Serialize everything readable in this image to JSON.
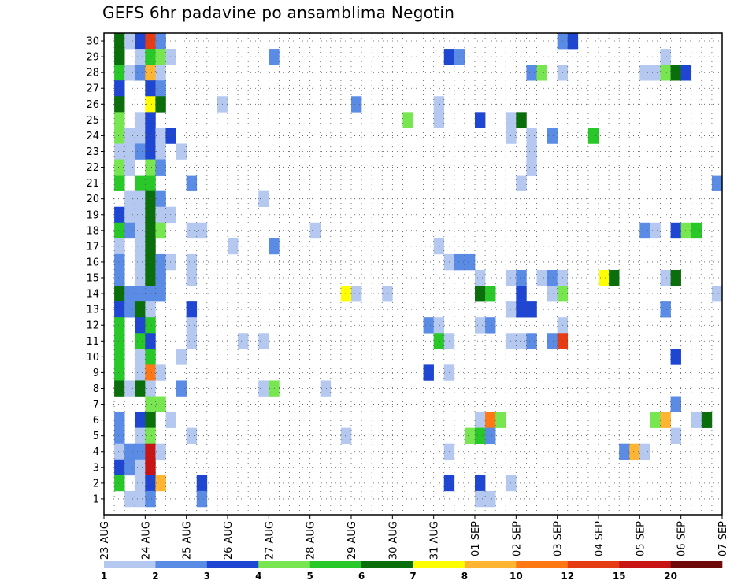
{
  "chart_data": {
    "type": "heatmap",
    "title": "GEFS 6hr padavine po ansamblima Negotin",
    "x_tick_labels": [
      "23 AUG",
      "24 AUG",
      "25 AUG",
      "26 AUG",
      "27 AUG",
      "28 AUG",
      "29 AUG",
      "30 AUG",
      "31 AUG",
      "01 SEP",
      "02 SEP",
      "03 SEP",
      "04 SEP",
      "05 SEP",
      "06 SEP",
      "07 SEP"
    ],
    "y_tick_labels": [
      "1",
      "2",
      "3",
      "4",
      "5",
      "6",
      "7",
      "8",
      "9",
      "10",
      "11",
      "12",
      "13",
      "14",
      "15",
      "16",
      "17",
      "18",
      "19",
      "20",
      "21",
      "22",
      "23",
      "24",
      "25",
      "26",
      "27",
      "28",
      "29",
      "30"
    ],
    "time_steps": 60,
    "members": 30,
    "grid": true,
    "colorbar": {
      "labels": [
        "1",
        "2",
        "3",
        "4",
        "5",
        "6",
        "7",
        "8",
        "10",
        "12",
        "15",
        "20"
      ],
      "colors": [
        "#b4c8f0",
        "#5a8ce6",
        "#1e46d2",
        "#78e650",
        "#28c828",
        "#0a6e0a",
        "#ffff00",
        "#ffb432",
        "#ff7814",
        "#e63c14",
        "#c81414",
        "#6e0a0a"
      ]
    },
    "cells": [
      [
        1,
        30,
        5
      ],
      [
        2,
        30,
        0
      ],
      [
        3,
        30,
        2
      ],
      [
        4,
        30,
        9
      ],
      [
        5,
        30,
        1
      ],
      [
        44,
        30,
        1
      ],
      [
        45,
        30,
        2
      ],
      [
        1,
        29,
        5
      ],
      [
        3,
        29,
        0
      ],
      [
        4,
        29,
        4
      ],
      [
        5,
        29,
        3
      ],
      [
        6,
        29,
        0
      ],
      [
        16,
        29,
        1
      ],
      [
        33,
        29,
        2
      ],
      [
        34,
        29,
        1
      ],
      [
        54,
        29,
        0
      ],
      [
        1,
        28,
        4
      ],
      [
        2,
        28,
        0
      ],
      [
        3,
        28,
        1
      ],
      [
        4,
        28,
        7
      ],
      [
        5,
        28,
        0
      ],
      [
        41,
        28,
        1
      ],
      [
        42,
        28,
        3
      ],
      [
        44,
        28,
        0
      ],
      [
        52,
        28,
        0
      ],
      [
        53,
        28,
        0
      ],
      [
        54,
        28,
        3
      ],
      [
        55,
        28,
        5
      ],
      [
        56,
        28,
        2
      ],
      [
        1,
        27,
        2
      ],
      [
        4,
        27,
        2
      ],
      [
        5,
        27,
        1
      ],
      [
        1,
        26,
        5
      ],
      [
        4,
        26,
        6
      ],
      [
        5,
        26,
        5
      ],
      [
        11,
        26,
        0
      ],
      [
        24,
        26,
        1
      ],
      [
        32,
        26,
        0
      ],
      [
        1,
        25,
        3
      ],
      [
        3,
        25,
        0
      ],
      [
        4,
        25,
        2
      ],
      [
        29,
        25,
        3
      ],
      [
        32,
        25,
        0
      ],
      [
        36,
        25,
        2
      ],
      [
        39,
        25,
        0
      ],
      [
        40,
        25,
        5
      ],
      [
        1,
        24,
        3
      ],
      [
        2,
        24,
        0
      ],
      [
        3,
        24,
        0
      ],
      [
        4,
        24,
        2
      ],
      [
        5,
        24,
        0
      ],
      [
        6,
        24,
        2
      ],
      [
        39,
        24,
        0
      ],
      [
        41,
        24,
        0
      ],
      [
        43,
        24,
        1
      ],
      [
        47,
        24,
        4
      ],
      [
        1,
        23,
        0
      ],
      [
        2,
        23,
        0
      ],
      [
        3,
        23,
        1
      ],
      [
        4,
        23,
        2
      ],
      [
        5,
        23,
        0
      ],
      [
        7,
        23,
        0
      ],
      [
        41,
        23,
        0
      ],
      [
        1,
        22,
        3
      ],
      [
        2,
        22,
        0
      ],
      [
        4,
        22,
        3
      ],
      [
        5,
        22,
        1
      ],
      [
        41,
        22,
        0
      ],
      [
        1,
        21,
        4
      ],
      [
        3,
        21,
        4
      ],
      [
        4,
        21,
        4
      ],
      [
        8,
        21,
        1
      ],
      [
        40,
        21,
        0
      ],
      [
        59,
        21,
        1
      ],
      [
        2,
        20,
        0
      ],
      [
        3,
        20,
        0
      ],
      [
        4,
        20,
        5
      ],
      [
        5,
        20,
        1
      ],
      [
        15,
        20,
        0
      ],
      [
        1,
        19,
        2
      ],
      [
        2,
        19,
        0
      ],
      [
        3,
        19,
        0
      ],
      [
        4,
        19,
        5
      ],
      [
        5,
        19,
        0
      ],
      [
        6,
        19,
        0
      ],
      [
        1,
        18,
        4
      ],
      [
        2,
        18,
        1
      ],
      [
        3,
        18,
        0
      ],
      [
        4,
        18,
        5
      ],
      [
        5,
        18,
        3
      ],
      [
        8,
        18,
        0
      ],
      [
        9,
        18,
        0
      ],
      [
        20,
        18,
        0
      ],
      [
        52,
        18,
        1
      ],
      [
        53,
        18,
        0
      ],
      [
        55,
        18,
        2
      ],
      [
        56,
        18,
        3
      ],
      [
        57,
        18,
        4
      ],
      [
        1,
        17,
        0
      ],
      [
        3,
        17,
        0
      ],
      [
        4,
        17,
        5
      ],
      [
        12,
        17,
        0
      ],
      [
        16,
        17,
        1
      ],
      [
        32,
        17,
        0
      ],
      [
        1,
        16,
        1
      ],
      [
        3,
        16,
        0
      ],
      [
        4,
        16,
        5
      ],
      [
        5,
        16,
        1
      ],
      [
        6,
        16,
        0
      ],
      [
        8,
        16,
        0
      ],
      [
        33,
        16,
        0
      ],
      [
        34,
        16,
        1
      ],
      [
        35,
        16,
        1
      ],
      [
        1,
        15,
        1
      ],
      [
        3,
        15,
        0
      ],
      [
        4,
        15,
        5
      ],
      [
        5,
        15,
        1
      ],
      [
        8,
        15,
        0
      ],
      [
        36,
        15,
        0
      ],
      [
        39,
        15,
        0
      ],
      [
        40,
        15,
        1
      ],
      [
        42,
        15,
        0
      ],
      [
        43,
        15,
        1
      ],
      [
        44,
        15,
        0
      ],
      [
        48,
        15,
        6
      ],
      [
        49,
        15,
        5
      ],
      [
        54,
        15,
        0
      ],
      [
        55,
        15,
        5
      ],
      [
        1,
        14,
        5
      ],
      [
        2,
        14,
        1
      ],
      [
        3,
        14,
        1
      ],
      [
        4,
        14,
        1
      ],
      [
        5,
        14,
        1
      ],
      [
        23,
        14,
        6
      ],
      [
        24,
        14,
        0
      ],
      [
        27,
        14,
        0
      ],
      [
        36,
        14,
        5
      ],
      [
        37,
        14,
        4
      ],
      [
        40,
        14,
        2
      ],
      [
        43,
        14,
        0
      ],
      [
        44,
        14,
        3
      ],
      [
        59,
        14,
        0
      ],
      [
        1,
        13,
        2
      ],
      [
        2,
        13,
        1
      ],
      [
        3,
        13,
        5
      ],
      [
        4,
        13,
        0
      ],
      [
        8,
        13,
        2
      ],
      [
        39,
        13,
        0
      ],
      [
        40,
        13,
        2
      ],
      [
        41,
        13,
        2
      ],
      [
        54,
        13,
        1
      ],
      [
        1,
        12,
        4
      ],
      [
        3,
        12,
        2
      ],
      [
        4,
        12,
        4
      ],
      [
        8,
        12,
        0
      ],
      [
        31,
        12,
        1
      ],
      [
        32,
        12,
        0
      ],
      [
        36,
        12,
        0
      ],
      [
        37,
        12,
        1
      ],
      [
        44,
        12,
        0
      ],
      [
        1,
        11,
        4
      ],
      [
        3,
        11,
        4
      ],
      [
        4,
        11,
        2
      ],
      [
        8,
        11,
        0
      ],
      [
        13,
        11,
        0
      ],
      [
        15,
        11,
        0
      ],
      [
        32,
        11,
        4
      ],
      [
        33,
        11,
        0
      ],
      [
        39,
        11,
        0
      ],
      [
        40,
        11,
        0
      ],
      [
        41,
        11,
        1
      ],
      [
        43,
        11,
        1
      ],
      [
        44,
        11,
        9
      ],
      [
        1,
        10,
        4
      ],
      [
        3,
        10,
        0
      ],
      [
        4,
        10,
        4
      ],
      [
        7,
        10,
        0
      ],
      [
        55,
        10,
        2
      ],
      [
        1,
        9,
        4
      ],
      [
        3,
        9,
        0
      ],
      [
        4,
        9,
        8
      ],
      [
        5,
        9,
        0
      ],
      [
        31,
        9,
        2
      ],
      [
        33,
        9,
        0
      ],
      [
        1,
        8,
        5
      ],
      [
        2,
        8,
        0
      ],
      [
        3,
        8,
        5
      ],
      [
        4,
        8,
        0
      ],
      [
        7,
        8,
        1
      ],
      [
        15,
        8,
        0
      ],
      [
        16,
        8,
        3
      ],
      [
        21,
        8,
        0
      ],
      [
        4,
        7,
        3
      ],
      [
        5,
        7,
        3
      ],
      [
        55,
        7,
        1
      ],
      [
        1,
        6,
        1
      ],
      [
        3,
        6,
        2
      ],
      [
        4,
        6,
        5
      ],
      [
        6,
        6,
        0
      ],
      [
        36,
        6,
        0
      ],
      [
        37,
        6,
        8
      ],
      [
        38,
        6,
        3
      ],
      [
        53,
        6,
        3
      ],
      [
        54,
        6,
        7
      ],
      [
        57,
        6,
        0
      ],
      [
        58,
        6,
        5
      ],
      [
        1,
        5,
        1
      ],
      [
        3,
        5,
        0
      ],
      [
        4,
        5,
        3
      ],
      [
        8,
        5,
        0
      ],
      [
        23,
        5,
        0
      ],
      [
        35,
        5,
        3
      ],
      [
        36,
        5,
        4
      ],
      [
        37,
        5,
        1
      ],
      [
        55,
        5,
        0
      ],
      [
        1,
        4,
        0
      ],
      [
        2,
        4,
        1
      ],
      [
        3,
        4,
        1
      ],
      [
        4,
        4,
        10
      ],
      [
        5,
        4,
        0
      ],
      [
        33,
        4,
        0
      ],
      [
        50,
        4,
        1
      ],
      [
        51,
        4,
        7
      ],
      [
        52,
        4,
        0
      ],
      [
        1,
        3,
        2
      ],
      [
        2,
        3,
        1
      ],
      [
        3,
        3,
        0
      ],
      [
        4,
        3,
        10
      ],
      [
        1,
        2,
        4
      ],
      [
        3,
        2,
        0
      ],
      [
        4,
        2,
        2
      ],
      [
        5,
        2,
        7
      ],
      [
        9,
        2,
        2
      ],
      [
        33,
        2,
        2
      ],
      [
        36,
        2,
        2
      ],
      [
        39,
        2,
        0
      ],
      [
        2,
        1,
        0
      ],
      [
        3,
        1,
        0
      ],
      [
        4,
        1,
        1
      ],
      [
        9,
        1,
        1
      ],
      [
        36,
        1,
        0
      ],
      [
        37,
        1,
        0
      ]
    ]
  }
}
